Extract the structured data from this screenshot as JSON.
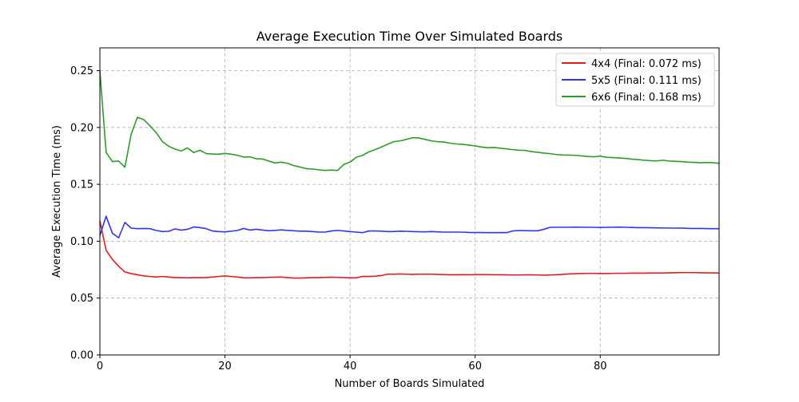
{
  "chart_data": {
    "type": "line",
    "title": "Average Execution Time Over Simulated Boards",
    "xlabel": "Number of Boards Simulated",
    "ylabel": "Average Execution Time (ms)",
    "xlim": [
      0,
      99
    ],
    "ylim": [
      0,
      0.27
    ],
    "xticks": [
      0,
      20,
      40,
      60,
      80
    ],
    "yticks": [
      0.0,
      0.05,
      0.1,
      0.15,
      0.2,
      0.25
    ],
    "xtick_labels": [
      "0",
      "20",
      "40",
      "60",
      "80"
    ],
    "ytick_labels": [
      "0.00",
      "0.05",
      "0.10",
      "0.15",
      "0.20",
      "0.25"
    ],
    "grid": true,
    "legend_position": "top-right",
    "series": [
      {
        "name": "4x4 (Final: 0.072 ms)",
        "color": "#e41a1c",
        "x": [
          0,
          1,
          2,
          3,
          4,
          5,
          6,
          7,
          8,
          9,
          10,
          11,
          12,
          13,
          14,
          15,
          16,
          17,
          18,
          19,
          20,
          21,
          22,
          23,
          24,
          25,
          26,
          27,
          28,
          29,
          30,
          31,
          32,
          33,
          34,
          35,
          36,
          37,
          38,
          39,
          40,
          41,
          42,
          43,
          44,
          45,
          46,
          47,
          48,
          49,
          50,
          51,
          52,
          53,
          54,
          55,
          56,
          57,
          58,
          59,
          60,
          61,
          62,
          63,
          64,
          65,
          66,
          67,
          68,
          69,
          70,
          71,
          72,
          73,
          74,
          75,
          76,
          77,
          78,
          79,
          80,
          81,
          82,
          83,
          84,
          85,
          86,
          87,
          88,
          89,
          90,
          91,
          92,
          93,
          94,
          95,
          96,
          97,
          98,
          99
        ],
        "values": [
          0.118,
          0.092,
          0.084,
          0.078,
          0.073,
          0.0715,
          0.0705,
          0.0695,
          0.069,
          0.0685,
          0.069,
          0.0685,
          0.068,
          0.068,
          0.0678,
          0.068,
          0.068,
          0.068,
          0.0685,
          0.069,
          0.0695,
          0.069,
          0.0685,
          0.0678,
          0.0678,
          0.068,
          0.068,
          0.0682,
          0.0683,
          0.0685,
          0.068,
          0.0676,
          0.0676,
          0.0678,
          0.068,
          0.068,
          0.0682,
          0.0683,
          0.0682,
          0.068,
          0.0678,
          0.0678,
          0.069,
          0.069,
          0.0692,
          0.0698,
          0.071,
          0.071,
          0.0712,
          0.071,
          0.0708,
          0.071,
          0.071,
          0.071,
          0.0708,
          0.0706,
          0.0705,
          0.0705,
          0.0706,
          0.0705,
          0.0706,
          0.0706,
          0.0706,
          0.0705,
          0.0705,
          0.0704,
          0.0703,
          0.0703,
          0.0704,
          0.0704,
          0.0703,
          0.0702,
          0.0703,
          0.0705,
          0.0708,
          0.0712,
          0.0714,
          0.0716,
          0.0717,
          0.0717,
          0.0716,
          0.0716,
          0.0717,
          0.0718,
          0.0718,
          0.0719,
          0.0719,
          0.0719,
          0.072,
          0.072,
          0.072,
          0.0722,
          0.0723,
          0.0724,
          0.0724,
          0.0724,
          0.0723,
          0.0722,
          0.0721,
          0.072
        ]
      },
      {
        "name": "5x5 (Final: 0.111 ms)",
        "color": "#3333ee",
        "x": [
          0,
          1,
          2,
          3,
          4,
          5,
          6,
          7,
          8,
          9,
          10,
          11,
          12,
          13,
          14,
          15,
          16,
          17,
          18,
          19,
          20,
          21,
          22,
          23,
          24,
          25,
          26,
          27,
          28,
          29,
          30,
          31,
          32,
          33,
          34,
          35,
          36,
          37,
          38,
          39,
          40,
          41,
          42,
          43,
          44,
          45,
          46,
          47,
          48,
          49,
          50,
          51,
          52,
          53,
          54,
          55,
          56,
          57,
          58,
          59,
          60,
          61,
          62,
          63,
          64,
          65,
          66,
          67,
          68,
          69,
          70,
          71,
          72,
          73,
          74,
          75,
          76,
          77,
          78,
          79,
          80,
          81,
          82,
          83,
          84,
          85,
          86,
          87,
          88,
          89,
          90,
          91,
          92,
          93,
          94,
          95,
          96,
          97,
          98,
          99
        ],
        "values": [
          0.105,
          0.122,
          0.107,
          0.103,
          0.1165,
          0.1115,
          0.111,
          0.1112,
          0.111,
          0.1095,
          0.1085,
          0.1087,
          0.1108,
          0.1097,
          0.1105,
          0.1125,
          0.112,
          0.111,
          0.109,
          0.1085,
          0.1082,
          0.1088,
          0.1095,
          0.1112,
          0.1098,
          0.1105,
          0.1098,
          0.1092,
          0.1095,
          0.11,
          0.1095,
          0.1092,
          0.1088,
          0.1088,
          0.1085,
          0.108,
          0.108,
          0.109,
          0.1095,
          0.109,
          0.1085,
          0.108,
          0.1075,
          0.109,
          0.109,
          0.1088,
          0.1085,
          0.1085,
          0.1088,
          0.1087,
          0.1085,
          0.1083,
          0.1082,
          0.1085,
          0.1082,
          0.108,
          0.108,
          0.108,
          0.108,
          0.1077,
          0.1076,
          0.1076,
          0.1075,
          0.1075,
          0.1076,
          0.1075,
          0.109,
          0.1094,
          0.1093,
          0.1092,
          0.1092,
          0.1105,
          0.1122,
          0.1123,
          0.1123,
          0.1123,
          0.1124,
          0.1123,
          0.1123,
          0.1122,
          0.1121,
          0.1122,
          0.1123,
          0.1124,
          0.1123,
          0.1121,
          0.1119,
          0.1119,
          0.1118,
          0.1117,
          0.1116,
          0.1116,
          0.1115,
          0.1116,
          0.1113,
          0.1112,
          0.1112,
          0.1111,
          0.111,
          0.111
        ]
      },
      {
        "name": "6x6 (Final: 0.168 ms)",
        "color": "#2e9a2e",
        "x": [
          0,
          1,
          2,
          3,
          4,
          5,
          6,
          7,
          8,
          9,
          10,
          11,
          12,
          13,
          14,
          15,
          16,
          17,
          18,
          19,
          20,
          21,
          22,
          23,
          24,
          25,
          26,
          27,
          28,
          29,
          30,
          31,
          32,
          33,
          34,
          35,
          36,
          37,
          38,
          39,
          40,
          41,
          42,
          43,
          44,
          45,
          46,
          47,
          48,
          49,
          50,
          51,
          52,
          53,
          54,
          55,
          56,
          57,
          58,
          59,
          60,
          61,
          62,
          63,
          64,
          65,
          66,
          67,
          68,
          69,
          70,
          71,
          72,
          73,
          74,
          75,
          76,
          77,
          78,
          79,
          80,
          81,
          82,
          83,
          84,
          85,
          86,
          87,
          88,
          89,
          90,
          91,
          92,
          93,
          94,
          95,
          96,
          97,
          98,
          99
        ],
        "values": [
          0.25,
          0.178,
          0.17,
          0.1705,
          0.165,
          0.194,
          0.209,
          0.207,
          0.2015,
          0.1955,
          0.1875,
          0.1835,
          0.181,
          0.1793,
          0.182,
          0.178,
          0.18,
          0.177,
          0.1767,
          0.1765,
          0.1772,
          0.1765,
          0.1755,
          0.174,
          0.1742,
          0.1725,
          0.1723,
          0.1705,
          0.1688,
          0.1695,
          0.1685,
          0.1665,
          0.1652,
          0.1638,
          0.1634,
          0.1628,
          0.1622,
          0.1626,
          0.1622,
          0.1675,
          0.1695,
          0.1738,
          0.1755,
          0.1785,
          0.1805,
          0.1828,
          0.1852,
          0.1875,
          0.1882,
          0.1895,
          0.191,
          0.1908,
          0.1895,
          0.1882,
          0.1875,
          0.1872,
          0.1862,
          0.1855,
          0.1852,
          0.1845,
          0.1838,
          0.1828,
          0.1822,
          0.1825,
          0.1818,
          0.1812,
          0.1805,
          0.18,
          0.1798,
          0.1788,
          0.1782,
          0.1775,
          0.177,
          0.1762,
          0.1758,
          0.1757,
          0.1755,
          0.175,
          0.1745,
          0.1742,
          0.1748,
          0.1738,
          0.1735,
          0.1732,
          0.1728,
          0.1722,
          0.1718,
          0.1712,
          0.1708,
          0.1706,
          0.1712,
          0.1705,
          0.1702,
          0.17,
          0.1695,
          0.1693,
          0.169,
          0.1692,
          0.169,
          0.1685
        ]
      }
    ]
  }
}
